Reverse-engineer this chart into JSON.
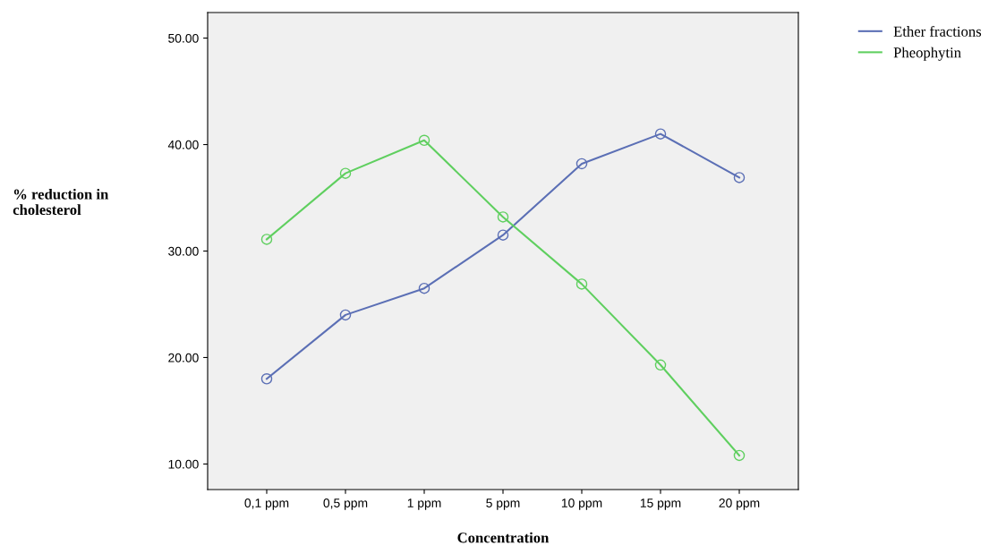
{
  "chart_data": {
    "type": "line",
    "xlabel": "Concentration",
    "ylabel": "% reduction in\ncholesterol",
    "categories": [
      "0,1 ppm",
      "0,5 ppm",
      "1 ppm",
      "5 ppm",
      "10 ppm",
      "15 ppm",
      "20 ppm"
    ],
    "series": [
      {
        "name": "Ether fractions",
        "color": "#5b6fb5",
        "values": [
          18.0,
          24.0,
          26.5,
          31.5,
          38.2,
          41.0,
          36.9
        ]
      },
      {
        "name": "Pheophytin",
        "color": "#5fcf5f",
        "values": [
          31.1,
          37.3,
          40.4,
          33.2,
          26.9,
          19.3,
          10.8
        ]
      }
    ],
    "ylim": [
      7.6,
      52.4
    ],
    "yticks": [
      {
        "value": 10,
        "label": "10.00"
      },
      {
        "value": 20,
        "label": "20.00"
      },
      {
        "value": 30,
        "label": "30.00"
      },
      {
        "value": 40,
        "label": "40.00"
      },
      {
        "value": 50,
        "label": "50.00"
      }
    ],
    "grid": false,
    "legend": "top right",
    "marker": "circle",
    "line_style": "solid"
  }
}
